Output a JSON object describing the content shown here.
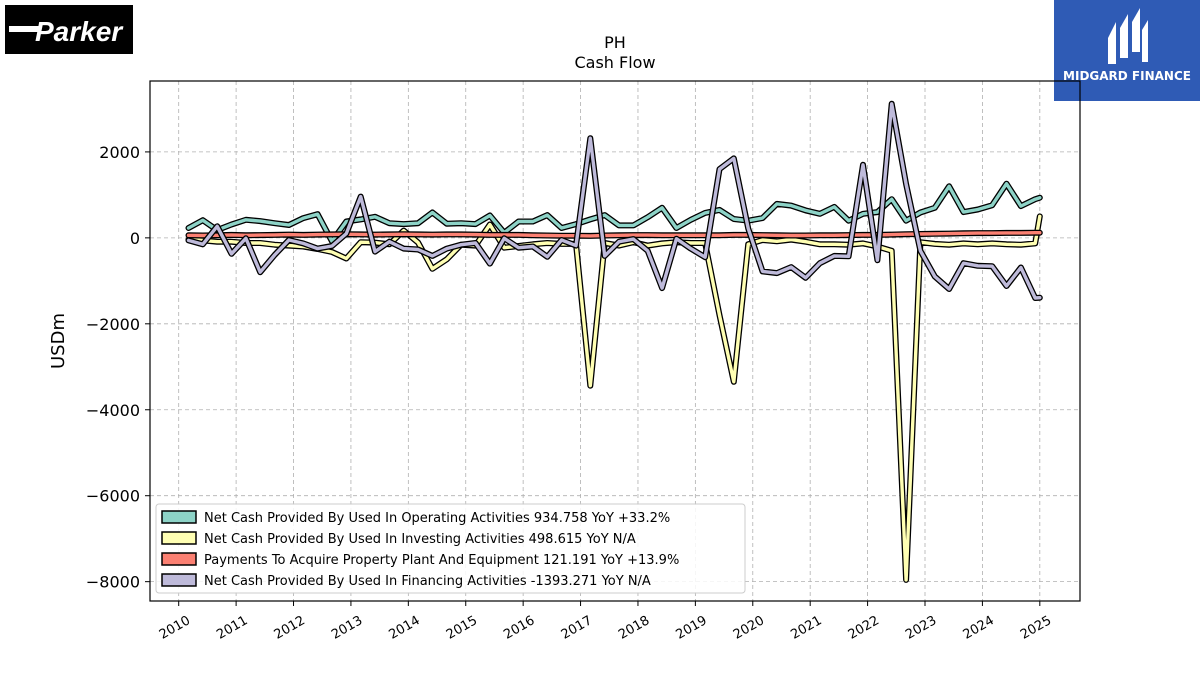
{
  "logos": {
    "left": {
      "text": "Parker",
      "name": "parker-logo"
    },
    "right": {
      "text": "MIDGARD FINANCE",
      "name": "midgard-finance-logo"
    }
  },
  "colors": {
    "operating": "#8dd3c7",
    "investing": "#ffffb3",
    "ppe": "#fb8072",
    "financing": "#bebada",
    "outline": "#000000",
    "grid": "#b0b0b0",
    "midgard_bg": "#2f5bb5"
  },
  "chart_data": {
    "type": "line",
    "title": "PH",
    "subtitle": "Cash Flow",
    "xlabel": "",
    "ylabel": "USDm",
    "xlim": [
      2009.5,
      2025.7
    ],
    "ylim": [
      -8450,
      3650
    ],
    "x_ticks": [
      2010,
      2011,
      2012,
      2013,
      2014,
      2015,
      2016,
      2017,
      2018,
      2019,
      2020,
      2021,
      2022,
      2023,
      2024,
      2025
    ],
    "y_ticks": [
      2000,
      0,
      -2000,
      -4000,
      -6000,
      -8000
    ],
    "y_tick_labels": [
      "2000",
      "0",
      "−2000",
      "−4000",
      "−6000",
      "−8000"
    ],
    "grid": true,
    "legend_position": "lower-left",
    "series": [
      {
        "name": "Net Cash Provided By Used In Operating Activities",
        "legend": "Net Cash Provided By Used In Operating Activities  934.758 YoY +33.2%",
        "color": "#8dd3c7",
        "points": [
          [
            2010.17,
            230
          ],
          [
            2010.42,
            410
          ],
          [
            2010.67,
            180
          ],
          [
            2010.92,
            310
          ],
          [
            2011.17,
            420
          ],
          [
            2011.42,
            390
          ],
          [
            2011.67,
            340
          ],
          [
            2011.92,
            300
          ],
          [
            2012.17,
            460
          ],
          [
            2012.42,
            550
          ],
          [
            2012.67,
            -80
          ],
          [
            2012.92,
            380
          ],
          [
            2013.17,
            430
          ],
          [
            2013.42,
            490
          ],
          [
            2013.67,
            340
          ],
          [
            2013.92,
            320
          ],
          [
            2014.17,
            340
          ],
          [
            2014.42,
            590
          ],
          [
            2014.67,
            330
          ],
          [
            2014.92,
            340
          ],
          [
            2015.17,
            320
          ],
          [
            2015.42,
            520
          ],
          [
            2015.67,
            120
          ],
          [
            2015.92,
            380
          ],
          [
            2016.17,
            380
          ],
          [
            2016.42,
            530
          ],
          [
            2016.67,
            230
          ],
          [
            2016.92,
            320
          ],
          [
            2017.17,
            430
          ],
          [
            2017.42,
            530
          ],
          [
            2017.67,
            290
          ],
          [
            2017.92,
            290
          ],
          [
            2018.17,
            480
          ],
          [
            2018.42,
            700
          ],
          [
            2018.67,
            230
          ],
          [
            2018.92,
            420
          ],
          [
            2019.17,
            580
          ],
          [
            2019.42,
            650
          ],
          [
            2019.67,
            440
          ],
          [
            2019.92,
            400
          ],
          [
            2020.17,
            460
          ],
          [
            2020.42,
            790
          ],
          [
            2020.67,
            750
          ],
          [
            2020.92,
            640
          ],
          [
            2021.17,
            560
          ],
          [
            2021.42,
            720
          ],
          [
            2021.67,
            400
          ],
          [
            2021.92,
            560
          ],
          [
            2022.17,
            600
          ],
          [
            2022.42,
            900
          ],
          [
            2022.67,
            400
          ],
          [
            2022.92,
            590
          ],
          [
            2023.17,
            700
          ],
          [
            2023.42,
            1200
          ],
          [
            2023.67,
            600
          ],
          [
            2023.92,
            660
          ],
          [
            2024.17,
            760
          ],
          [
            2024.42,
            1260
          ],
          [
            2024.67,
            740
          ],
          [
            2024.92,
            900
          ],
          [
            2025.0,
            935
          ]
        ]
      },
      {
        "name": "Net Cash Provided By Used In Investing Activities",
        "legend": "Net Cash Provided By Used In Investing Activities  498.615 YoY N/A",
        "color": "#ffffb3",
        "points": [
          [
            2010.17,
            -40
          ],
          [
            2010.42,
            -60
          ],
          [
            2010.67,
            -90
          ],
          [
            2010.92,
            -90
          ],
          [
            2011.17,
            -120
          ],
          [
            2011.42,
            -120
          ],
          [
            2011.67,
            -160
          ],
          [
            2011.92,
            -180
          ],
          [
            2012.17,
            -200
          ],
          [
            2012.42,
            -260
          ],
          [
            2012.67,
            -330
          ],
          [
            2012.92,
            -480
          ],
          [
            2013.17,
            -100
          ],
          [
            2013.42,
            -110
          ],
          [
            2013.67,
            -150
          ],
          [
            2013.92,
            170
          ],
          [
            2014.17,
            -110
          ],
          [
            2014.42,
            -720
          ],
          [
            2014.67,
            -500
          ],
          [
            2014.92,
            -160
          ],
          [
            2015.17,
            -180
          ],
          [
            2015.42,
            310
          ],
          [
            2015.67,
            -230
          ],
          [
            2015.92,
            -190
          ],
          [
            2016.17,
            -150
          ],
          [
            2016.42,
            -120
          ],
          [
            2016.67,
            -140
          ],
          [
            2016.92,
            -140
          ],
          [
            2017.17,
            -3440
          ],
          [
            2017.42,
            -120
          ],
          [
            2017.67,
            -180
          ],
          [
            2017.92,
            -100
          ],
          [
            2018.17,
            -180
          ],
          [
            2018.42,
            -130
          ],
          [
            2018.67,
            -100
          ],
          [
            2018.92,
            -120
          ],
          [
            2019.17,
            -120
          ],
          [
            2019.42,
            -1800
          ],
          [
            2019.67,
            -3350
          ],
          [
            2019.92,
            -150
          ],
          [
            2020.17,
            -50
          ],
          [
            2020.42,
            -80
          ],
          [
            2020.67,
            -40
          ],
          [
            2020.92,
            -90
          ],
          [
            2021.17,
            -150
          ],
          [
            2021.42,
            -150
          ],
          [
            2021.67,
            -160
          ],
          [
            2021.92,
            -130
          ],
          [
            2022.17,
            -200
          ],
          [
            2022.42,
            -300
          ],
          [
            2022.67,
            -7960
          ],
          [
            2022.92,
            -100
          ],
          [
            2023.17,
            -140
          ],
          [
            2023.42,
            -160
          ],
          [
            2023.67,
            -130
          ],
          [
            2023.92,
            -150
          ],
          [
            2024.17,
            -130
          ],
          [
            2024.42,
            -150
          ],
          [
            2024.67,
            -160
          ],
          [
            2024.92,
            -130
          ],
          [
            2025.0,
            499
          ]
        ]
      },
      {
        "name": "Payments To Acquire Property Plant And Equipment",
        "legend": "Payments To Acquire Property Plant And Equipment  121.191 YoY +13.9%",
        "color": "#fb8072",
        "points": [
          [
            2010.17,
            60
          ],
          [
            2010.42,
            55
          ],
          [
            2010.67,
            60
          ],
          [
            2010.92,
            70
          ],
          [
            2011.17,
            60
          ],
          [
            2011.42,
            65
          ],
          [
            2011.67,
            70
          ],
          [
            2011.92,
            75
          ],
          [
            2012.17,
            70
          ],
          [
            2012.42,
            75
          ],
          [
            2012.67,
            80
          ],
          [
            2012.92,
            85
          ],
          [
            2013.17,
            80
          ],
          [
            2013.42,
            75
          ],
          [
            2013.67,
            80
          ],
          [
            2013.92,
            85
          ],
          [
            2014.17,
            80
          ],
          [
            2014.42,
            75
          ],
          [
            2014.67,
            80
          ],
          [
            2014.92,
            80
          ],
          [
            2015.17,
            75
          ],
          [
            2015.42,
            70
          ],
          [
            2015.67,
            70
          ],
          [
            2015.92,
            70
          ],
          [
            2016.17,
            60
          ],
          [
            2016.42,
            55
          ],
          [
            2016.67,
            50
          ],
          [
            2016.92,
            50
          ],
          [
            2017.17,
            45
          ],
          [
            2017.42,
            55
          ],
          [
            2017.67,
            60
          ],
          [
            2017.92,
            65
          ],
          [
            2018.17,
            65
          ],
          [
            2018.42,
            60
          ],
          [
            2018.67,
            60
          ],
          [
            2018.92,
            60
          ],
          [
            2019.17,
            60
          ],
          [
            2019.42,
            60
          ],
          [
            2019.67,
            70
          ],
          [
            2019.92,
            70
          ],
          [
            2020.17,
            65
          ],
          [
            2020.42,
            60
          ],
          [
            2020.67,
            55
          ],
          [
            2020.92,
            55
          ],
          [
            2021.17,
            60
          ],
          [
            2021.42,
            60
          ],
          [
            2021.67,
            65
          ],
          [
            2021.92,
            70
          ],
          [
            2022.17,
            70
          ],
          [
            2022.42,
            75
          ],
          [
            2022.67,
            85
          ],
          [
            2022.92,
            90
          ],
          [
            2023.17,
            95
          ],
          [
            2023.42,
            100
          ],
          [
            2023.67,
            105
          ],
          [
            2023.92,
            110
          ],
          [
            2024.17,
            110
          ],
          [
            2024.42,
            115
          ],
          [
            2024.67,
            115
          ],
          [
            2024.92,
            120
          ],
          [
            2025.0,
            121
          ]
        ]
      },
      {
        "name": "Net Cash Provided By Used In Financing Activities",
        "legend": "Net Cash Provided By Used In Financing Activities  -1393.271 YoY N/A",
        "color": "#bebada",
        "points": [
          [
            2010.17,
            -60
          ],
          [
            2010.42,
            -150
          ],
          [
            2010.67,
            270
          ],
          [
            2010.92,
            -370
          ],
          [
            2011.17,
            -10
          ],
          [
            2011.42,
            -800
          ],
          [
            2011.67,
            -400
          ],
          [
            2011.92,
            -50
          ],
          [
            2012.17,
            -130
          ],
          [
            2012.42,
            -250
          ],
          [
            2012.67,
            -190
          ],
          [
            2012.92,
            100
          ],
          [
            2013.17,
            960
          ],
          [
            2013.42,
            -320
          ],
          [
            2013.67,
            -90
          ],
          [
            2013.92,
            -250
          ],
          [
            2014.17,
            -270
          ],
          [
            2014.42,
            -420
          ],
          [
            2014.67,
            -250
          ],
          [
            2014.92,
            -160
          ],
          [
            2015.17,
            -120
          ],
          [
            2015.42,
            -600
          ],
          [
            2015.67,
            -10
          ],
          [
            2015.92,
            -230
          ],
          [
            2016.17,
            -200
          ],
          [
            2016.42,
            -440
          ],
          [
            2016.67,
            -50
          ],
          [
            2016.92,
            -180
          ],
          [
            2017.17,
            2320
          ],
          [
            2017.42,
            -420
          ],
          [
            2017.67,
            -90
          ],
          [
            2017.92,
            -30
          ],
          [
            2018.17,
            -300
          ],
          [
            2018.42,
            -1170
          ],
          [
            2018.67,
            -20
          ],
          [
            2018.92,
            -250
          ],
          [
            2019.17,
            -450
          ],
          [
            2019.42,
            1600
          ],
          [
            2019.67,
            1850
          ],
          [
            2019.92,
            220
          ],
          [
            2020.17,
            -780
          ],
          [
            2020.42,
            -820
          ],
          [
            2020.67,
            -680
          ],
          [
            2020.92,
            -930
          ],
          [
            2021.17,
            -590
          ],
          [
            2021.42,
            -420
          ],
          [
            2021.67,
            -430
          ],
          [
            2021.92,
            1700
          ],
          [
            2022.17,
            -520
          ],
          [
            2022.42,
            3120
          ],
          [
            2022.67,
            1250
          ],
          [
            2022.92,
            -300
          ],
          [
            2023.17,
            -900
          ],
          [
            2023.42,
            -1190
          ],
          [
            2023.67,
            -590
          ],
          [
            2023.92,
            -650
          ],
          [
            2024.17,
            -660
          ],
          [
            2024.42,
            -1120
          ],
          [
            2024.67,
            -690
          ],
          [
            2024.92,
            -1400
          ],
          [
            2025.0,
            -1393
          ]
        ]
      }
    ]
  }
}
